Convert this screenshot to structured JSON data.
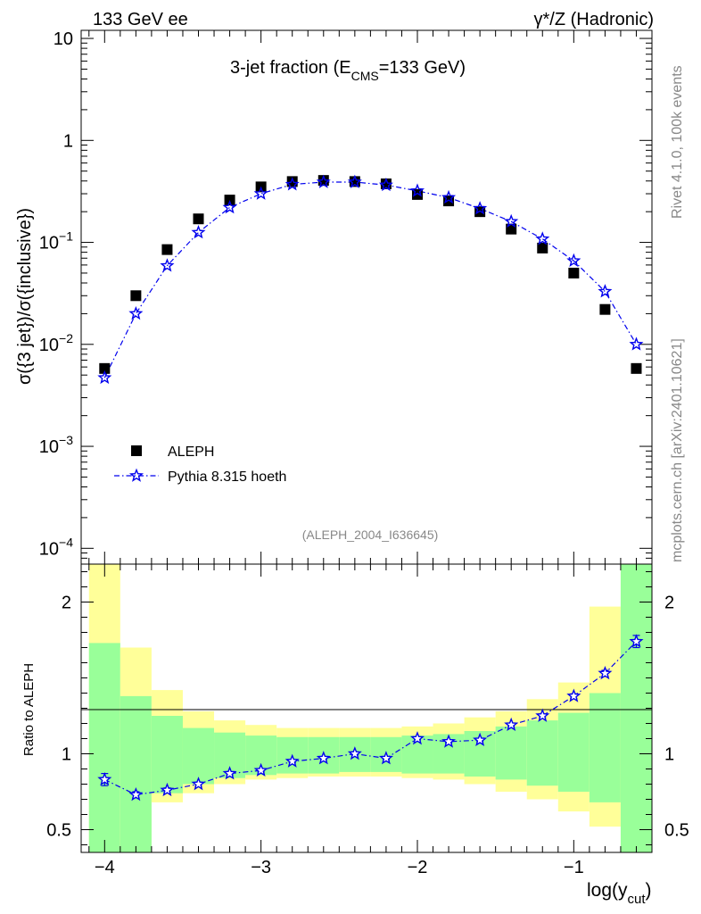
{
  "header": {
    "left": "133 GeV ee",
    "right": "γ*/Z (Hadronic)"
  },
  "side": {
    "rivet": "Rivet 4.1.0,  100k events",
    "mcplots": "mcplots.cern.ch [arXiv:2401.10621]"
  },
  "chart_data": {
    "type": "scatter",
    "title_prefix": "3-jet fraction (E",
    "title_sub": "CMS",
    "title_suffix": "=133 GeV)",
    "analysis_tag": "(ALEPH_2004_I636645)",
    "xlabel_main": "log(y",
    "xlabel_sub": "cut",
    "xlabel_close": ")",
    "ylabel": "σ({3 jet})/σ({inclusive})",
    "ratio_ylabel": "Ratio to ALEPH",
    "xlim": [
      -4.15,
      -0.5
    ],
    "ylim": [
      7e-05,
      12
    ],
    "ratio_ylim": [
      0.35,
      2.25
    ],
    "yscale": "log",
    "x_ticks": [
      {
        "value": -4,
        "label": "−4"
      },
      {
        "value": -3,
        "label": "−3"
      },
      {
        "value": -2,
        "label": "−2"
      },
      {
        "value": -1,
        "label": "−1"
      }
    ],
    "y_ticks": [
      {
        "value": 10,
        "base": "10",
        "exp": ""
      },
      {
        "value": 1,
        "base": "1",
        "exp": ""
      },
      {
        "value": 0.1,
        "base": "10",
        "exp": "−1"
      },
      {
        "value": 0.01,
        "base": "10",
        "exp": "−2"
      },
      {
        "value": 0.001,
        "base": "10",
        "exp": "−3"
      },
      {
        "value": 0.0001,
        "base": "10",
        "exp": "−4"
      }
    ],
    "ratio_ticks": [
      {
        "value": 2,
        "label": "2"
      },
      {
        "value": 1,
        "label": "1"
      },
      {
        "value": 0.5,
        "label": "0.5"
      }
    ],
    "x": [
      -4.0,
      -3.8,
      -3.6,
      -3.4,
      -3.2,
      -3.0,
      -2.8,
      -2.6,
      -2.4,
      -2.2,
      -2.0,
      -1.8,
      -1.6,
      -1.4,
      -1.2,
      -1.0,
      -0.8,
      -0.6
    ],
    "bin_edges": [
      -4.1,
      -3.9,
      -3.7,
      -3.5,
      -3.3,
      -3.1,
      -2.9,
      -2.7,
      -2.5,
      -2.3,
      -2.1,
      -1.9,
      -1.7,
      -1.5,
      -1.3,
      -1.1,
      -0.9,
      -0.7,
      -0.5
    ],
    "series": [
      {
        "name": "ALEPH",
        "marker": "square",
        "color": "#000000",
        "values": [
          0.0058,
          0.03,
          0.085,
          0.17,
          0.26,
          0.35,
          0.395,
          0.405,
          0.395,
          0.375,
          0.295,
          0.255,
          0.2,
          0.135,
          0.088,
          0.05,
          0.022,
          0.0058
        ]
      },
      {
        "name": "Pythia 8.315 hoeth",
        "marker": "star",
        "color": "#0000ee",
        "values": [
          0.0047,
          0.02,
          0.059,
          0.125,
          0.22,
          0.3,
          0.37,
          0.39,
          0.39,
          0.365,
          0.32,
          0.275,
          0.215,
          0.16,
          0.108,
          0.066,
          0.033,
          0.01
        ]
      }
    ],
    "ratio": {
      "values": [
        0.83,
        0.73,
        0.76,
        0.8,
        0.87,
        0.89,
        0.95,
        0.97,
        1.0,
        0.97,
        1.1,
        1.08,
        1.09,
        1.19,
        1.25,
        1.38,
        1.53,
        1.74
      ],
      "errors": [
        0.04,
        0.02,
        0.015,
        0.012,
        0.01,
        0.01,
        0.008,
        0.008,
        0.008,
        0.008,
        0.008,
        0.008,
        0.01,
        0.01,
        0.012,
        0.015,
        0.02,
        0.04
      ],
      "green_lo": [
        0.35,
        0.35,
        0.74,
        0.8,
        0.84,
        0.86,
        0.87,
        0.87,
        0.88,
        0.88,
        0.87,
        0.87,
        0.85,
        0.83,
        0.79,
        0.75,
        0.68,
        0.35
      ],
      "green_hi": [
        1.73,
        1.38,
        1.25,
        1.17,
        1.14,
        1.12,
        1.11,
        1.11,
        1.11,
        1.11,
        1.12,
        1.13,
        1.15,
        1.18,
        1.22,
        1.27,
        1.4,
        2.25
      ],
      "yellow_lo": [
        0.35,
        0.35,
        0.68,
        0.74,
        0.8,
        0.83,
        0.84,
        0.85,
        0.85,
        0.85,
        0.84,
        0.83,
        0.8,
        0.75,
        0.7,
        0.62,
        0.52,
        0.35
      ],
      "yellow_hi": [
        2.25,
        1.7,
        1.42,
        1.28,
        1.22,
        1.19,
        1.17,
        1.17,
        1.17,
        1.17,
        1.18,
        1.2,
        1.24,
        1.28,
        1.36,
        1.47,
        1.97,
        2.25
      ]
    },
    "band_colors": {
      "green": "#99ff99",
      "yellow": "#ffff99"
    },
    "legend_position": "bottom-left"
  }
}
